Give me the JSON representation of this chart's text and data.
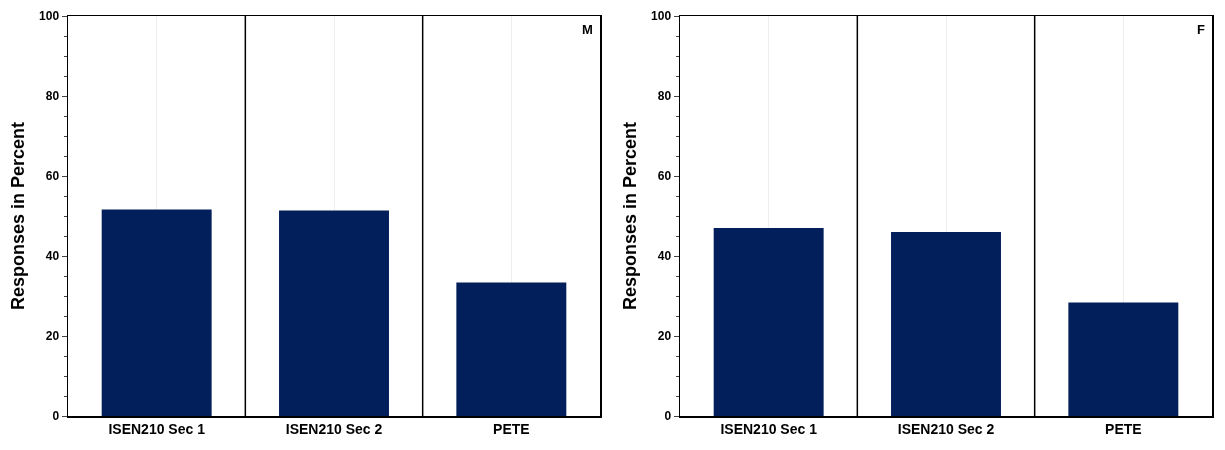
{
  "chart_data": [
    {
      "type": "bar",
      "ylabel": "Responses in Percent",
      "categories": [
        "ISEN210 Sec 1",
        "ISEN210 Sec 2",
        "PETE"
      ],
      "values": [
        51.6,
        51.4,
        33.4
      ],
      "color": "#021f5b",
      "ylim": [
        0,
        100
      ],
      "yticks": [
        0,
        20,
        40,
        60,
        80,
        100
      ],
      "grid": "x",
      "annotations": [
        "M"
      ]
    },
    {
      "type": "bar",
      "ylabel": "Responses in Percent",
      "categories": [
        "ISEN210 Sec 1",
        "ISEN210 Sec 2",
        "PETE"
      ],
      "values": [
        47.0,
        46.0,
        28.4
      ],
      "color": "#021f5b",
      "ylim": [
        0,
        100
      ],
      "yticks": [
        0,
        20,
        40,
        60,
        80,
        100
      ],
      "grid": "x",
      "annotations": [
        "F"
      ]
    }
  ]
}
